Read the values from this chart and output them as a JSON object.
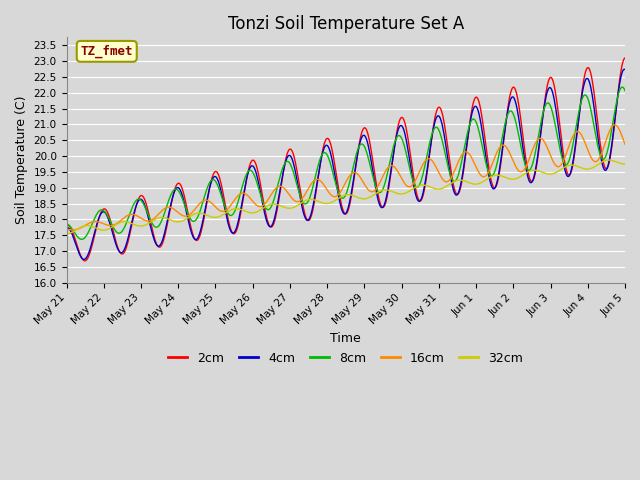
{
  "title": "Tonzi Soil Temperature Set A",
  "xlabel": "Time",
  "ylabel": "Soil Temperature (C)",
  "annotation": "TZ_fmet",
  "annotation_color": "#8B0000",
  "annotation_bg": "#FFFFCC",
  "annotation_border": "#999900",
  "ylim": [
    16.0,
    23.75
  ],
  "yticks": [
    16.0,
    16.5,
    17.0,
    17.5,
    18.0,
    18.5,
    19.0,
    19.5,
    20.0,
    20.5,
    21.0,
    21.5,
    22.0,
    22.5,
    23.0,
    23.5
  ],
  "bg_color": "#D8D8D8",
  "plot_bg": "#D8D8D8",
  "grid_color": "#FFFFFF",
  "line_colors": [
    "#FF0000",
    "#0000CC",
    "#00BB00",
    "#FF8800",
    "#CCCC00"
  ],
  "line_labels": [
    "2cm",
    "4cm",
    "8cm",
    "16cm",
    "32cm"
  ],
  "line_width": 1.0,
  "title_fontsize": 12
}
